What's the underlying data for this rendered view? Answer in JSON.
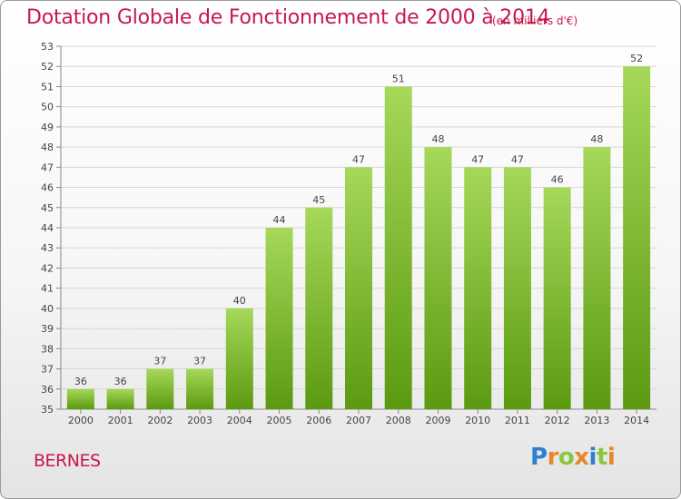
{
  "title": "Dotation Globale de Fonctionnement de 2000 à 2014",
  "subtitle": "(en milliers d'€)",
  "commune": "BERNES",
  "logo": {
    "letters": [
      "P",
      "r",
      "o",
      "x",
      "i",
      "t",
      "i"
    ],
    "colors": [
      "#2f7fd0",
      "#e8862a",
      "#8cc63f",
      "#e8862a",
      "#2f7fd0",
      "#8cc63f",
      "#e8862a"
    ]
  },
  "colors": {
    "accent": "#c8184a",
    "bar_top": "#a6d85a",
    "bar_bottom": "#5b9a10",
    "grid": "#d7d7d7"
  },
  "chart_data": {
    "type": "bar",
    "title": "Dotation Globale de Fonctionnement de 2000 à 2014",
    "xlabel": "",
    "ylabel": "(en milliers d'€)",
    "categories": [
      "2000",
      "2001",
      "2002",
      "2003",
      "2004",
      "2005",
      "2006",
      "2007",
      "2008",
      "2009",
      "2010",
      "2011",
      "2012",
      "2013",
      "2014"
    ],
    "values": [
      36,
      36,
      37,
      37,
      40,
      44,
      45,
      47,
      51,
      48,
      47,
      47,
      46,
      48,
      52
    ],
    "ylim": [
      35,
      53
    ],
    "yticks": [
      35,
      36,
      37,
      38,
      39,
      40,
      41,
      42,
      43,
      44,
      45,
      46,
      47,
      48,
      49,
      50,
      51,
      52,
      53
    ],
    "grid": true
  }
}
